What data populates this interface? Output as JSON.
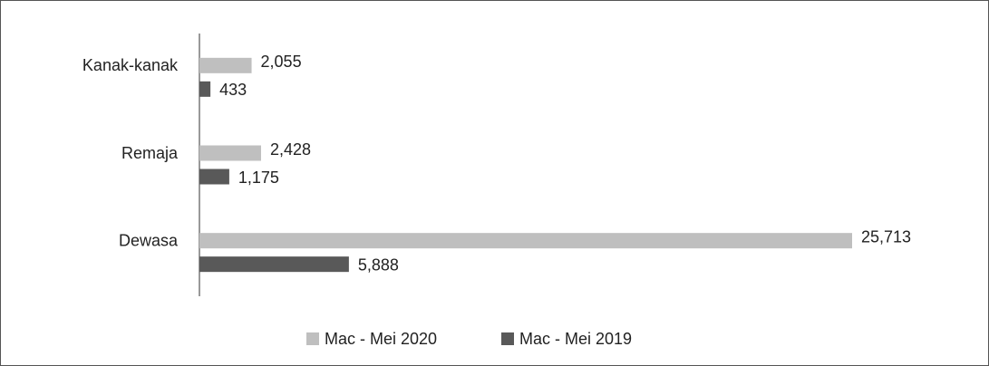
{
  "chart_data": {
    "type": "bar",
    "orientation": "horizontal",
    "categories": [
      "Kanak-kanak",
      "Remaja",
      "Dewasa"
    ],
    "series": [
      {
        "name": "Mac - Mei 2020",
        "color": "#bfbfbf",
        "values": [
          2055,
          2428,
          25713
        ],
        "value_labels": [
          "2,055",
          "2,428",
          "25,713"
        ]
      },
      {
        "name": "Mac - Mei 2019",
        "color": "#595959",
        "values": [
          433,
          1175,
          5888
        ],
        "value_labels": [
          "433",
          "1,175",
          "5,888"
        ]
      }
    ],
    "legend": "bottom"
  }
}
